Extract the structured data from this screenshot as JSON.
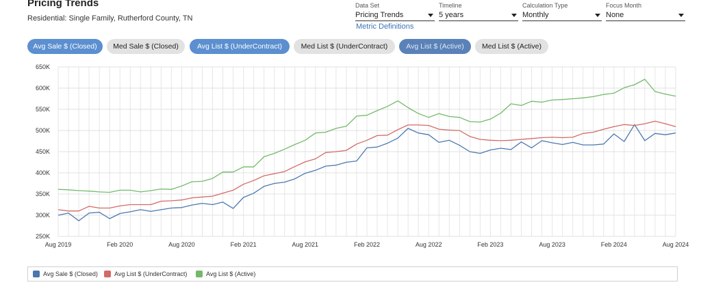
{
  "header": {
    "title": "Pricing Trends",
    "subtitle": "Residential: Single Family, Rutherford County, TN"
  },
  "controls": {
    "data_set": {
      "label": "Data Set",
      "value": "Pricing Trends"
    },
    "timeline": {
      "label": "Timeline",
      "value": "5 years"
    },
    "calc_type": {
      "label": "Calculation Type",
      "value": "Monthly"
    },
    "focus_month": {
      "label": "Focus Month",
      "value": "None"
    },
    "metric_link": "Metric Definitions"
  },
  "tabs": [
    {
      "label": "Avg Sale $ (Closed)",
      "state": "on"
    },
    {
      "label": "Med Sale $ (Closed)",
      "state": "off"
    },
    {
      "label": "Avg List $ (UnderContract)",
      "state": "on"
    },
    {
      "label": "Med List $ (UnderContract)",
      "state": "off"
    },
    {
      "label": "Avg List $ (Active)",
      "state": "active"
    },
    {
      "label": "Med List $ (Active)",
      "state": "off"
    }
  ],
  "legend": [
    {
      "label": "Avg Sale $ (Closed)",
      "color": "#4a78b0"
    },
    {
      "label": "Avg List $ (UnderContract)",
      "color": "#d26a66"
    },
    {
      "label": "Avg List $ (Active)",
      "color": "#72ba6a"
    }
  ],
  "chart_data": {
    "type": "line",
    "grid": true,
    "legend_position": "bottom",
    "ylim": [
      250000,
      650000
    ],
    "y_ticks": [
      250000,
      300000,
      350000,
      400000,
      450000,
      500000,
      550000,
      600000,
      650000
    ],
    "y_tick_labels": [
      "250K",
      "300K",
      "350K",
      "400K",
      "450K",
      "500K",
      "550K",
      "600K",
      "650K"
    ],
    "x": [
      "2019-08",
      "2019-09",
      "2019-10",
      "2019-11",
      "2019-12",
      "2020-01",
      "2020-02",
      "2020-03",
      "2020-04",
      "2020-05",
      "2020-06",
      "2020-07",
      "2020-08",
      "2020-09",
      "2020-10",
      "2020-11",
      "2020-12",
      "2021-01",
      "2021-02",
      "2021-03",
      "2021-04",
      "2021-05",
      "2021-06",
      "2021-07",
      "2021-08",
      "2021-09",
      "2021-10",
      "2021-11",
      "2021-12",
      "2022-01",
      "2022-02",
      "2022-03",
      "2022-04",
      "2022-05",
      "2022-06",
      "2022-07",
      "2022-08",
      "2022-09",
      "2022-10",
      "2022-11",
      "2022-12",
      "2023-01",
      "2023-02",
      "2023-03",
      "2023-04",
      "2023-05",
      "2023-06",
      "2023-07",
      "2023-08",
      "2023-09",
      "2023-10",
      "2023-11",
      "2023-12",
      "2024-01",
      "2024-02",
      "2024-03",
      "2024-04",
      "2024-05",
      "2024-06",
      "2024-07",
      "2024-08"
    ],
    "x_tick_labels": [
      "Aug 2019",
      "Feb 2020",
      "Aug 2020",
      "Feb 2021",
      "Aug 2021",
      "Feb 2022",
      "Aug 2022",
      "Feb 2023",
      "Aug 2023",
      "Feb 2024",
      "Aug 2024"
    ],
    "x_tick_index": [
      0,
      6,
      12,
      18,
      24,
      30,
      36,
      42,
      48,
      54,
      60
    ],
    "series": [
      {
        "name": "Avg Sale $ (Closed)",
        "color": "#4a78b0",
        "values": [
          300000,
          305000,
          287000,
          305000,
          307000,
          292000,
          304000,
          308000,
          313000,
          309000,
          313000,
          317000,
          318000,
          324000,
          328000,
          325000,
          331000,
          316000,
          342000,
          352000,
          368000,
          375000,
          378000,
          386000,
          399000,
          406000,
          416000,
          418000,
          425000,
          428000,
          459000,
          461000,
          470000,
          482000,
          505000,
          494000,
          490000,
          472000,
          477000,
          465000,
          450000,
          446000,
          454000,
          458000,
          455000,
          473000,
          459000,
          476000,
          471000,
          467000,
          472000,
          466000,
          466000,
          468000,
          492000,
          474000,
          514000,
          476000,
          493000,
          490000,
          494000
        ]
      },
      {
        "name": "Avg List $ (UnderContract)",
        "color": "#d26a66",
        "values": [
          313000,
          310000,
          310000,
          321000,
          317000,
          317000,
          322000,
          325000,
          325000,
          325000,
          333000,
          334000,
          336000,
          341000,
          343000,
          345000,
          352000,
          359000,
          373000,
          382000,
          393000,
          398000,
          403000,
          415000,
          426000,
          433000,
          448000,
          450000,
          453000,
          468000,
          477000,
          488000,
          489000,
          502000,
          513000,
          513000,
          512000,
          503000,
          501000,
          500000,
          486000,
          479000,
          477000,
          476000,
          477000,
          479000,
          481000,
          483000,
          484000,
          483000,
          484000,
          493000,
          496000,
          503000,
          509000,
          514000,
          512000,
          516000,
          522000,
          516000,
          509000
        ]
      },
      {
        "name": "Avg List $ (Active)",
        "color": "#72ba6a",
        "values": [
          361000,
          360000,
          358000,
          357000,
          355000,
          354000,
          359000,
          359000,
          355000,
          358000,
          362000,
          361000,
          369000,
          379000,
          380000,
          387000,
          402000,
          402000,
          414000,
          414000,
          438000,
          446000,
          456000,
          467000,
          477000,
          494000,
          496000,
          505000,
          510000,
          534000,
          536000,
          547000,
          557000,
          570000,
          554000,
          540000,
          531000,
          540000,
          533000,
          531000,
          521000,
          520000,
          527000,
          541000,
          563000,
          559000,
          569000,
          567000,
          572000,
          573000,
          575000,
          577000,
          580000,
          585000,
          588000,
          601000,
          608000,
          621000,
          592000,
          586000,
          581000
        ]
      }
    ]
  }
}
